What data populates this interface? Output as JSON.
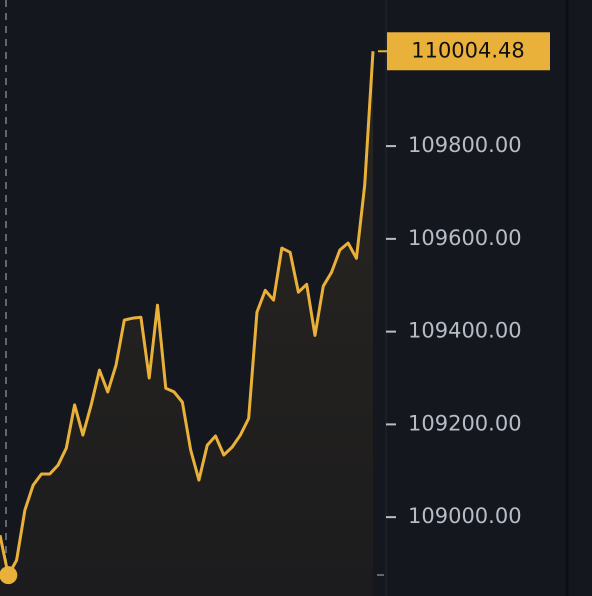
{
  "chart_data": {
    "type": "line",
    "color": "#eab13a",
    "values": [
      108961,
      108875,
      108907,
      109015,
      109069,
      109093,
      109093,
      109112,
      109149,
      109242,
      109177,
      109242,
      109317,
      109270,
      109328,
      109425,
      109429,
      109431,
      109300,
      109457,
      109278,
      109270,
      109248,
      109145,
      109080,
      109155,
      109175,
      109134,
      109151,
      109177,
      109213,
      109442,
      109489,
      109468,
      109580,
      109571,
      109485,
      109502,
      109392,
      109498,
      109528,
      109576,
      109591,
      109558,
      109716,
      110004.48
    ],
    "ylim": [
      108830,
      110115
    ],
    "yticks": [
      {
        "value": 109000,
        "label": "109000.00"
      },
      {
        "value": 109200,
        "label": "109200.00"
      },
      {
        "value": 109400,
        "label": "109400.00"
      },
      {
        "value": 109600,
        "label": "109600.00"
      },
      {
        "value": 109800,
        "label": "109800.00"
      }
    ]
  }
}
